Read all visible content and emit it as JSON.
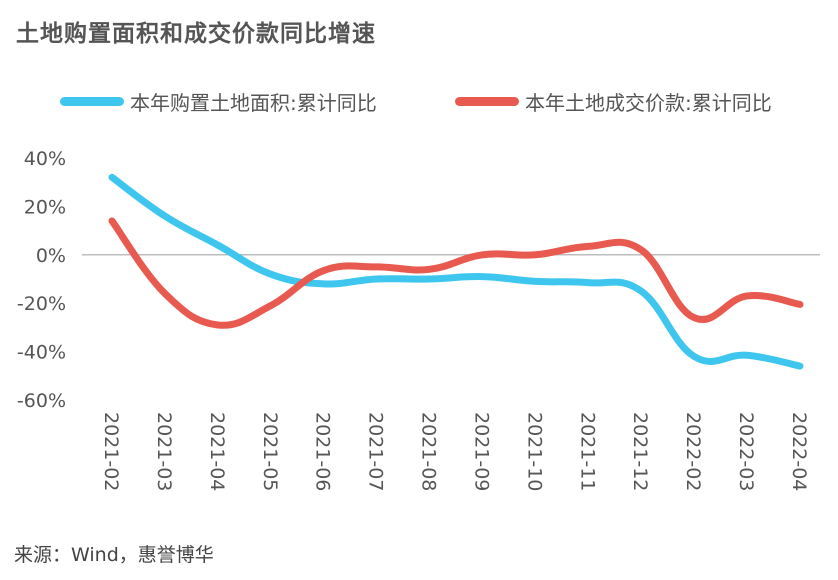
{
  "chart_data": {
    "type": "line",
    "title": "土地购置面积和成交价款同比增速",
    "categories": [
      "2021-02",
      "2021-03",
      "2021-04",
      "2021-05",
      "2021-06",
      "2021-07",
      "2021-08",
      "2021-09",
      "2021-10",
      "2021-11",
      "2021-12",
      "2022-02",
      "2022-03",
      "2022-04"
    ],
    "series": [
      {
        "name": "本年购置土地面积:累计同比",
        "color": "#3ec6ef",
        "values": [
          32,
          16,
          4,
          -8,
          -12,
          -10,
          -10,
          -9,
          -11,
          -11.5,
          -15,
          -42,
          -41.5,
          -46
        ]
      },
      {
        "name": "本年土地成交价款:累计同比",
        "color": "#e85a50",
        "values": [
          14,
          -16,
          -29,
          -21,
          -6.5,
          -5,
          -6,
          0,
          0,
          3.5,
          2,
          -26,
          -17,
          -20.5
        ]
      }
    ],
    "yticks": [
      "40%",
      "20%",
      "0%",
      "-20%",
      "-40%",
      "-60%"
    ],
    "ylim": [
      -60,
      40
    ],
    "legend_position": "top"
  },
  "source": "来源：Wind，惠誉博华"
}
